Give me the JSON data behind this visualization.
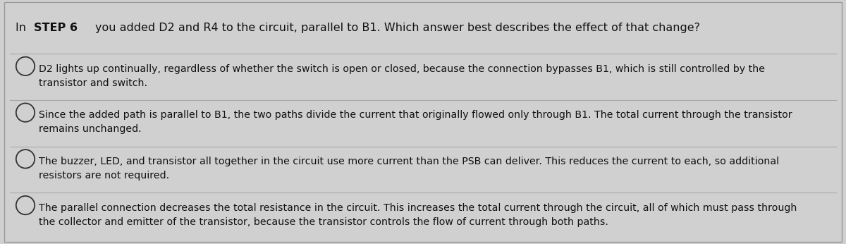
{
  "title_part1": "In ",
  "title_bold": "STEP 6 ",
  "title_part2": "you added D2 and R4 to the circuit, parallel to B1. Which answer best describes the effect of that change?",
  "options": [
    "D2 lights up continually, regardless of whether the switch is open or closed, because the connection bypasses B1, which is still controlled by the\ntransistor and switch.",
    "Since the added path is parallel to B1, the two paths divide the current that originally flowed only through B1. The total current through the transistor\nremains unchanged.",
    "The buzzer, LED, and transistor all together in the circuit use more current than the PSB can deliver. This reduces the current to each, so additional\nresistors are not required.",
    "The parallel connection decreases the total resistance in the circuit. This increases the total current through the circuit, all of which must pass through\nthe collector and emitter of the transistor, because the transistor controls the flow of current through both paths."
  ],
  "bg_color": "#d0d0d0",
  "text_color": "#111111",
  "separator_color": "#aaaaaa",
  "circle_color": "#333333",
  "font_size_title": 11.5,
  "font_size_options": 10.2,
  "fig_width": 12.0,
  "fig_height": 3.46
}
